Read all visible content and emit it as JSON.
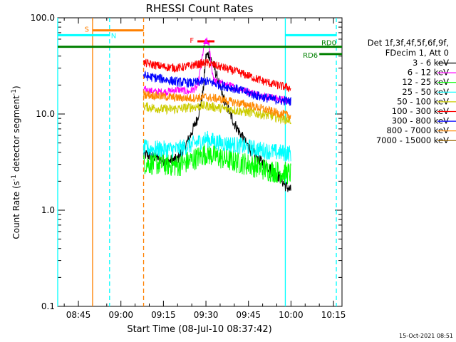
{
  "chart_data": {
    "type": "line",
    "title": "RHESSI Count Rates",
    "xlabel": "Start Time (08-Jul-10 08:37:42)",
    "ylabel": "Count Rate (s",
    "ylabel_sup1": "-1",
    "ylabel_mid": " detector segment",
    "ylabel_sup2": "-1",
    "ylabel_end": ")",
    "y_scale": "log",
    "ylim": [
      0.1,
      100.0
    ],
    "xlim": [
      "08:37:42",
      "10:18:00"
    ],
    "x_ticks": [
      "08:45",
      "09:00",
      "09:15",
      "09:30",
      "09:45",
      "10:00",
      "10:15"
    ],
    "y_ticks": [
      "0.1",
      "1.0",
      "10.0",
      "100.0"
    ],
    "legend_placement": "right",
    "legend_header": [
      "Det 1f,3f,4f,5f,6f,9f,",
      "FDecim 1, Att 0"
    ],
    "data_gap": [
      "08:58",
      "09:08"
    ],
    "series": [
      {
        "name": "3 - 6 keV",
        "color": "#000000",
        "x": [
          "09:08",
          "09:12",
          "09:16",
          "09:20",
          "09:24",
          "09:27",
          "09:29",
          "09:30",
          "09:31",
          "09:33",
          "09:36",
          "09:40",
          "09:44",
          "09:48",
          "09:52",
          "09:56",
          "09:58",
          "10:00"
        ],
        "y": [
          3.8,
          3.6,
          3.2,
          3.4,
          5.5,
          9,
          17,
          40,
          42,
          30,
          15,
          8,
          5,
          3.5,
          2.8,
          2.2,
          1.8,
          1.6
        ]
      },
      {
        "name": "6 - 12 keV",
        "color": "#ff00ff",
        "x": [
          "09:08",
          "09:12",
          "09:16",
          "09:20",
          "09:24",
          "09:27",
          "09:28",
          "09:29",
          "09:30",
          "09:31",
          "09:32",
          "09:33",
          "09:35",
          "09:40",
          "09:45",
          "09:50",
          "09:55",
          "10:00"
        ],
        "y": [
          18,
          17,
          17,
          18,
          17,
          19,
          28,
          45,
          58,
          55,
          30,
          22,
          21,
          19,
          17,
          15.5,
          14.5,
          13.5
        ]
      },
      {
        "name": "12 - 25 keV",
        "color": "#00ff00",
        "x": [
          "09:08",
          "09:15",
          "09:20",
          "09:25",
          "09:30",
          "09:35",
          "09:40",
          "09:45",
          "09:50",
          "09:55",
          "10:00"
        ],
        "y": [
          3.1,
          3.0,
          2.9,
          3.3,
          3.9,
          3.5,
          3.2,
          3.0,
          2.7,
          2.5,
          2.4
        ]
      },
      {
        "name": "25 - 50 keV",
        "color": "#00ffff",
        "x": [
          "09:08",
          "09:15",
          "09:20",
          "09:25",
          "09:30",
          "09:35",
          "09:40",
          "09:45",
          "09:50",
          "09:55",
          "10:00"
        ],
        "y": [
          4.4,
          4.3,
          4.3,
          4.8,
          5.5,
          5.0,
          4.8,
          4.5,
          4.2,
          4.0,
          3.9
        ]
      },
      {
        "name": "50 - 100 keV",
        "color": "#cccc00",
        "x": [
          "09:08",
          "09:15",
          "09:20",
          "09:25",
          "09:30",
          "09:35",
          "09:40",
          "09:45",
          "09:50",
          "09:55",
          "10:00"
        ],
        "y": [
          12.0,
          11.2,
          11.3,
          11.8,
          12.2,
          11.5,
          11.0,
          10.4,
          9.9,
          9.2,
          8.6
        ]
      },
      {
        "name": "100 - 300 keV",
        "color": "#ff0000",
        "x": [
          "09:08",
          "09:15",
          "09:20",
          "09:25",
          "09:30",
          "09:35",
          "09:40",
          "09:45",
          "09:50",
          "09:55",
          "10:00"
        ],
        "y": [
          34,
          31,
          30,
          32,
          34,
          31,
          28,
          25,
          22,
          20,
          18.5
        ]
      },
      {
        "name": "300 - 800 keV",
        "color": "#0000ff",
        "x": [
          "09:08",
          "09:15",
          "09:20",
          "09:25",
          "09:30",
          "09:35",
          "09:40",
          "09:45",
          "09:50",
          "09:55",
          "10:00"
        ],
        "y": [
          25,
          23,
          21.5,
          21,
          22,
          20,
          18.5,
          16.5,
          15,
          14,
          13.5
        ]
      },
      {
        "name": "800 - 7000 keV",
        "color": "#ff8800",
        "x": [
          "09:08",
          "09:15",
          "09:20",
          "09:25",
          "09:30",
          "09:35",
          "09:40",
          "09:45",
          "09:50",
          "09:55",
          "10:00"
        ],
        "y": [
          16.0,
          15.2,
          14.7,
          14.6,
          15.0,
          14.3,
          13.2,
          12.4,
          11.3,
          10.3,
          9.5
        ]
      },
      {
        "name": "7000 - 15000 keV",
        "color": "#996600",
        "x": [],
        "y": []
      }
    ],
    "intervals": [
      {
        "name": "S",
        "color": "#ff8000",
        "level": 74,
        "start": "08:50",
        "end": "09:08"
      },
      {
        "name": "N",
        "color": "#00ffff",
        "level": 66,
        "start": "08:37:42",
        "end": "08:56"
      },
      {
        "name": "N",
        "color": "#00ffff",
        "level": 66,
        "start": "09:58",
        "end": "10:16",
        "label_hidden": true
      },
      {
        "name": "RD0",
        "color": "#008000",
        "level": 50,
        "start": "08:37:42",
        "end": "10:18"
      },
      {
        "name": "RD6",
        "color": "#008000",
        "level": 42,
        "start": "10:10",
        "end": "10:18"
      },
      {
        "name": "F",
        "color": "#ff0000",
        "level": 57,
        "start": "09:27",
        "end": "09:33"
      }
    ],
    "vertical_lines": [
      {
        "time": "08:37:42",
        "color": "#00ffff",
        "style": "solid"
      },
      {
        "time": "08:50",
        "color": "#ff8000",
        "style": "solid"
      },
      {
        "time": "08:56",
        "color": "#00ffff",
        "style": "dashed"
      },
      {
        "time": "09:08",
        "color": "#ff8000",
        "style": "dashed"
      },
      {
        "time": "09:58",
        "color": "#00ffff",
        "style": "solid"
      },
      {
        "time": "10:16",
        "color": "#00ffff",
        "style": "dashed"
      }
    ]
  },
  "footer": {
    "timestamp": "15-Oct-2021 08:51"
  }
}
